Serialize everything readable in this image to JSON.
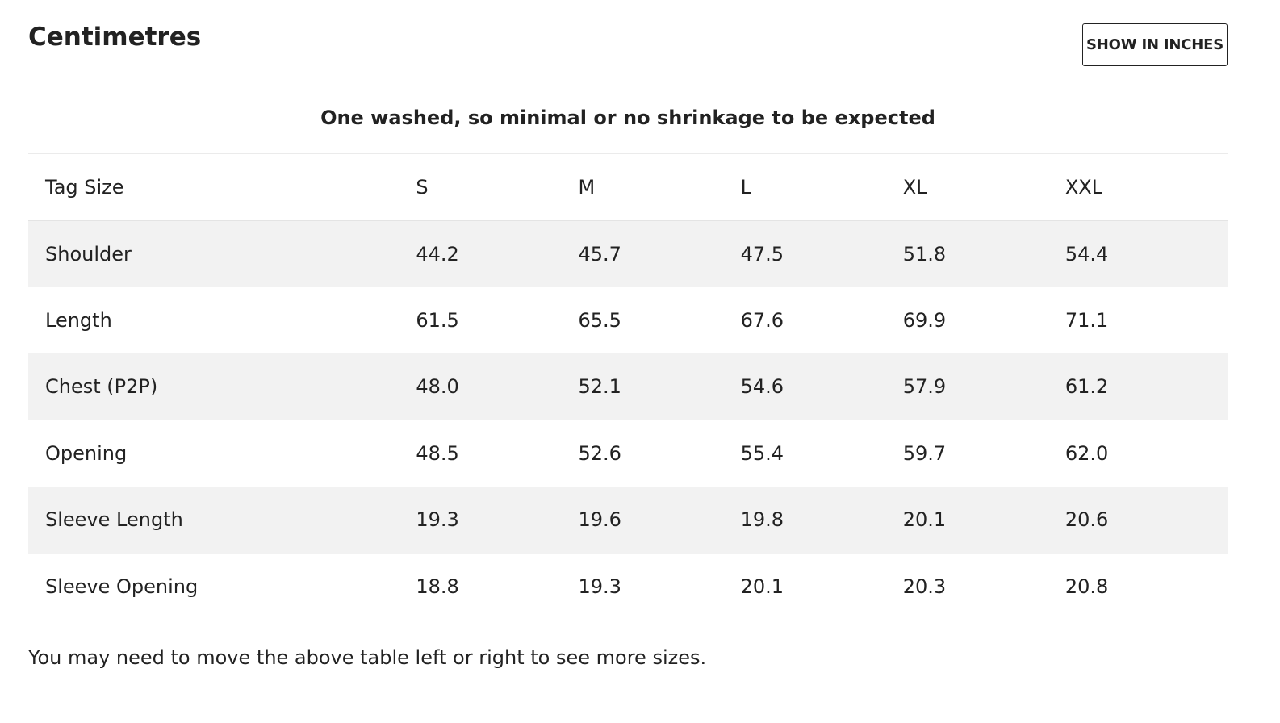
{
  "header": {
    "title": "Centimetres",
    "toggle_label": "SHOW IN INCHES"
  },
  "note": "One washed, so minimal or no shrinkage to be expected",
  "table": {
    "columns": [
      "Tag Size",
      "S",
      "M",
      "L",
      "XL",
      "XXL"
    ],
    "rows": [
      {
        "label": "Shoulder",
        "values": [
          "44.2",
          "45.7",
          "47.5",
          "51.8",
          "54.4"
        ]
      },
      {
        "label": "Length",
        "values": [
          "61.5",
          "65.5",
          "67.6",
          "69.9",
          "71.1"
        ]
      },
      {
        "label": "Chest (P2P)",
        "values": [
          "48.0",
          "52.1",
          "54.6",
          "57.9",
          "61.2"
        ]
      },
      {
        "label": "Opening",
        "values": [
          "48.5",
          "52.6",
          "55.4",
          "59.7",
          "62.0"
        ]
      },
      {
        "label": "Sleeve Length",
        "values": [
          "19.3",
          "19.6",
          "19.8",
          "20.1",
          "20.6"
        ]
      },
      {
        "label": "Sleeve Opening",
        "values": [
          "18.8",
          "19.3",
          "20.1",
          "20.3",
          "20.8"
        ]
      }
    ]
  },
  "footer_note": "You may need to move the above table left or right to see more sizes."
}
